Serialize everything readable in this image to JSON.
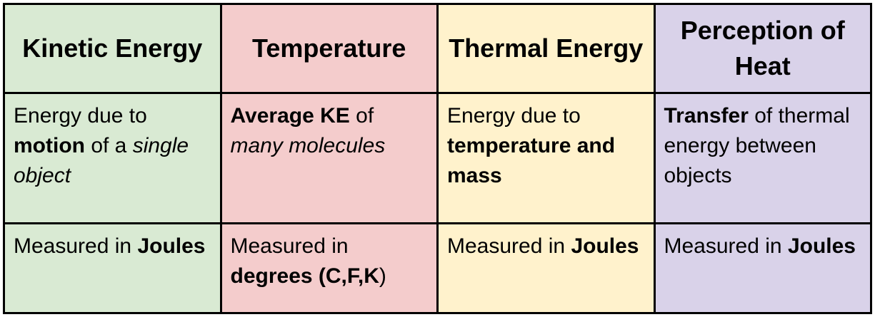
{
  "table": {
    "columns": [
      {
        "header": "Kinetic Energy",
        "color": "#d9ead3"
      },
      {
        "header": "Temperature",
        "color": "#f4cccc"
      },
      {
        "header": "Thermal Energy",
        "color": "#fff2cc"
      },
      {
        "header": "Perception of Heat",
        "color": "#d9d2e9"
      }
    ],
    "rows": [
      [
        [
          {
            "text": "Energy due to "
          },
          {
            "text": "motion",
            "style": "bold"
          },
          {
            "text": " of a "
          },
          {
            "text": "single object",
            "style": "italic"
          }
        ],
        [
          {
            "text": "Average KE",
            "style": "bold"
          },
          {
            "text": " of "
          },
          {
            "text": "many molecules",
            "style": "italic"
          }
        ],
        [
          {
            "text": "Energy due to "
          },
          {
            "text": "temperature and mass",
            "style": "bold"
          }
        ],
        [
          {
            "text": "Transfer",
            "style": "bold"
          },
          {
            "text": " of thermal energy between objects"
          }
        ]
      ],
      [
        [
          {
            "text": "Measured in "
          },
          {
            "text": "Joules",
            "style": "bold"
          }
        ],
        [
          {
            "text": "Measured in "
          },
          {
            "text": "degrees (C,F,K",
            "style": "bold"
          },
          {
            "text": ")"
          }
        ],
        [
          {
            "text": "Measured in "
          },
          {
            "text": "Joules",
            "style": "bold"
          }
        ],
        [
          {
            "text": "Measured in "
          },
          {
            "text": "Joules",
            "style": "bold"
          }
        ]
      ]
    ]
  }
}
